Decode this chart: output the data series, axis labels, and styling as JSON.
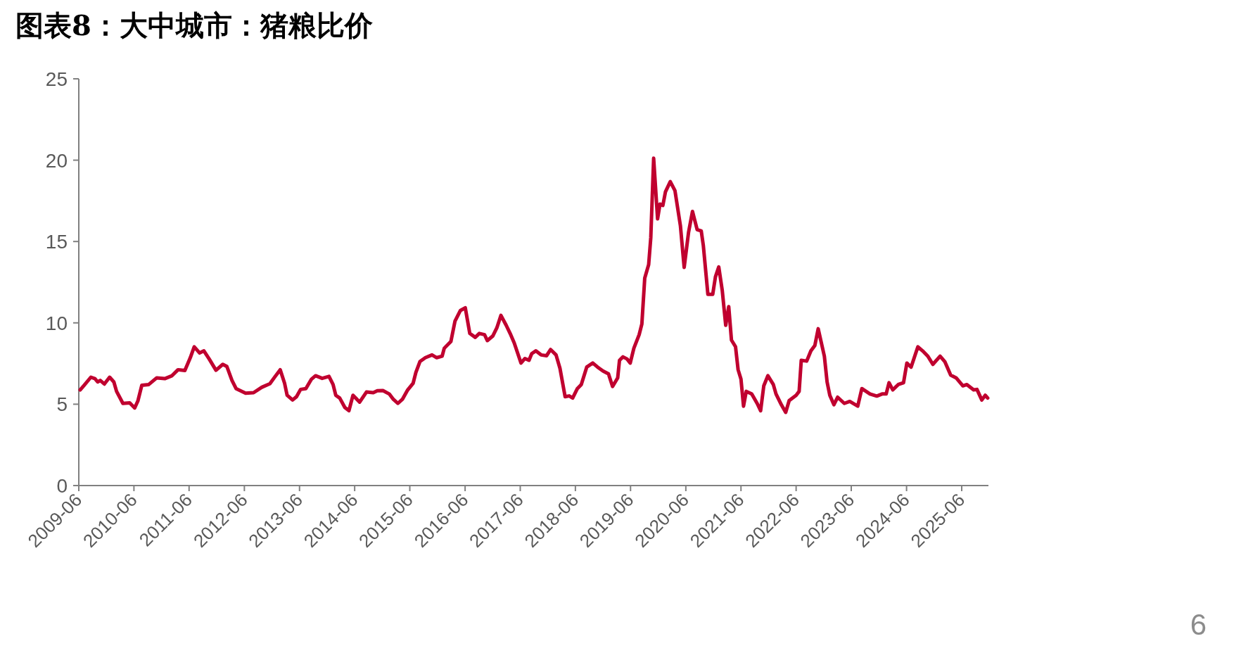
{
  "chart_data": {
    "type": "line",
    "title": "图表8：大中城市：猪粮比价",
    "annotations": [
      "6"
    ],
    "x": [
      "2009-06-10",
      "2009-07-06",
      "2009-08-20",
      "2009-09-16",
      "2009-10-04",
      "2009-10-21",
      "2009-11-17",
      "2009-12-22",
      "2010-01-19",
      "2010-02-06",
      "2010-03-20",
      "2010-05-04",
      "2010-06-06",
      "2010-06-27",
      "2010-07-23",
      "2010-09-07",
      "2010-10-30",
      "2010-12-22",
      "2011-02-06",
      "2011-03-20",
      "2011-05-04",
      "2011-06-09",
      "2011-07-05",
      "2011-08-10",
      "2011-09-07",
      "2011-10-12",
      "2011-11-26",
      "2012-01-10",
      "2012-02-06",
      "2012-03-11",
      "2012-04-07",
      "2012-06-09",
      "2012-08-01",
      "2012-09-24",
      "2012-11-17",
      "2012-12-22",
      "2013-01-24",
      "2013-02-22",
      "2013-03-11",
      "2013-04-16",
      "2013-05-12",
      "2013-06-08",
      "2013-07-13",
      "2013-08-19",
      "2013-09-15",
      "2013-10-29",
      "2013-12-13",
      "2014-01-09",
      "2014-01-27",
      "2014-02-22",
      "2014-03-28",
      "2014-04-24",
      "2014-05-21",
      "2014-07-04",
      "2014-08-18",
      "2014-10-02",
      "2014-10-29",
      "2014-12-05",
      "2015-01-16",
      "2015-02-12",
      "2015-03-14",
      "2015-04-13",
      "2015-05-18",
      "2015-06-23",
      "2015-07-11",
      "2015-08-07",
      "2015-09-12",
      "2015-10-26",
      "2015-11-26",
      "2016-01-01",
      "2016-01-15",
      "2016-02-28",
      "2016-03-26",
      "2016-05-01",
      "2016-06-02",
      "2016-07-02",
      "2016-08-07",
      "2016-09-03",
      "2016-10-08",
      "2016-10-26",
      "2016-12-01",
      "2016-12-28",
      "2017-01-24",
      "2017-02-28",
      "2017-03-26",
      "2017-04-22",
      "2017-06-06",
      "2017-07-02",
      "2017-07-29",
      "2017-08-16",
      "2017-09-12",
      "2017-10-17",
      "2017-11-22",
      "2017-12-19",
      "2018-01-24",
      "2018-02-19",
      "2018-03-25",
      "2018-04-21",
      "2018-05-14",
      "2018-06-14",
      "2018-07-10",
      "2018-08-15",
      "2018-09-24",
      "2018-10-26",
      "2018-12-01",
      "2019-01-06",
      "2019-02-02",
      "2019-03-08",
      "2019-03-20",
      "2019-04-12",
      "2019-05-09",
      "2019-05-30",
      "2019-06-23",
      "2019-07-28",
      "2019-08-15",
      "2019-09-03",
      "2019-09-29",
      "2019-10-13",
      "2019-11-01",
      "2019-11-27",
      "2019-12-13",
      "2020-01-01",
      "2020-01-18",
      "2020-02-19",
      "2020-03-21",
      "2020-04-26",
      "2020-05-21",
      "2020-06-19",
      "2020-07-15",
      "2020-08-15",
      "2020-09-11",
      "2020-09-25",
      "2020-10-25",
      "2020-11-26",
      "2020-12-14",
      "2021-01-05",
      "2021-01-28",
      "2021-02-20",
      "2021-03-12",
      "2021-03-30",
      "2021-04-26",
      "2021-05-13",
      "2021-06-01",
      "2021-06-18",
      "2021-07-06",
      "2021-08-11",
      "2021-09-16",
      "2021-10-09",
      "2021-10-30",
      "2021-11-26",
      "2022-01-01",
      "2022-01-19",
      "2022-02-23",
      "2022-03-24",
      "2022-04-16",
      "2022-06-01",
      "2022-06-21",
      "2022-07-05",
      "2022-08-10",
      "2022-09-07",
      "2022-10-03",
      "2022-10-25",
      "2022-12-05",
      "2022-12-23",
      "2023-01-10",
      "2023-02-06",
      "2023-03-03",
      "2023-04-16",
      "2023-05-22",
      "2023-07-14",
      "2023-08-10",
      "2023-10-03",
      "2023-11-17",
      "2023-12-22",
      "2024-01-18",
      "2024-02-06",
      "2024-03-02",
      "2024-04-07",
      "2024-05-12",
      "2024-06-03",
      "2024-07-01",
      "2024-08-15",
      "2024-09-15",
      "2024-10-20",
      "2024-11-22",
      "2025-01-09",
      "2025-02-09",
      "2025-03-20",
      "2025-04-25",
      "2025-06-09",
      "2025-07-05",
      "2025-08-19",
      "2025-09-10",
      "2025-10-12",
      "2025-11-04",
      "2025-11-20"
    ],
    "series": [
      {
        "color": "#c0002f",
        "values": [
          5.88,
          6.16,
          6.66,
          6.57,
          6.37,
          6.46,
          6.24,
          6.66,
          6.37,
          5.79,
          5.05,
          5.08,
          4.77,
          5.2,
          6.16,
          6.21,
          6.62,
          6.57,
          6.74,
          7.12,
          7.07,
          7.86,
          8.53,
          8.15,
          8.28,
          7.78,
          7.09,
          7.45,
          7.32,
          6.46,
          5.96,
          5.68,
          5.71,
          6.04,
          6.26,
          6.71,
          7.12,
          6.29,
          5.55,
          5.26,
          5.46,
          5.91,
          5.96,
          6.54,
          6.75,
          6.59,
          6.71,
          6.21,
          5.55,
          5.38,
          4.8,
          4.6,
          5.55,
          5.13,
          5.75,
          5.71,
          5.83,
          5.84,
          5.63,
          5.3,
          5.05,
          5.3,
          5.88,
          6.29,
          6.95,
          7.62,
          7.86,
          8.03,
          7.86,
          7.95,
          8.44,
          8.86,
          10.1,
          10.76,
          10.93,
          9.35,
          9.11,
          9.35,
          9.27,
          8.91,
          9.19,
          9.69,
          10.46,
          9.85,
          9.35,
          8.77,
          7.53,
          7.81,
          7.7,
          8.11,
          8.28,
          8.03,
          7.98,
          8.36,
          8.03,
          7.2,
          5.46,
          5.51,
          5.38,
          5.96,
          6.21,
          7.28,
          7.53,
          7.28,
          7.04,
          6.87,
          6.09,
          6.62,
          7.7,
          7.91,
          7.78,
          7.53,
          8.44,
          9.27,
          9.93,
          12.75,
          13.58,
          15.23,
          20.12,
          16.39,
          17.3,
          17.22,
          18.05,
          18.68,
          18.13,
          15.98,
          13.41,
          15.56,
          16.85,
          15.73,
          15.65,
          14.74,
          11.75,
          11.75,
          12.83,
          13.44,
          12.0,
          9.85,
          11.0,
          8.94,
          8.53,
          7.12,
          6.54,
          4.88,
          5.79,
          5.63,
          5.05,
          4.6,
          6.13,
          6.75,
          6.21,
          5.63,
          4.97,
          4.5,
          5.22,
          5.55,
          5.79,
          7.7,
          7.65,
          8.28,
          8.61,
          9.64,
          7.95,
          6.37,
          5.55,
          4.97,
          5.43,
          5.05,
          5.17,
          4.88,
          5.96,
          5.63,
          5.5,
          5.63,
          5.63,
          6.32,
          5.88,
          6.21,
          6.32,
          7.53,
          7.28,
          8.53,
          8.28,
          7.95,
          7.45,
          7.95,
          7.62,
          6.79,
          6.62,
          6.13,
          6.21,
          5.88,
          5.91,
          5.26,
          5.55,
          5.38
        ]
      }
    ],
    "xlim": [
      "2009-06",
      "2025-11-25"
    ],
    "xticks": [
      "2009-06",
      "2010-06",
      "2011-06",
      "2012-06",
      "2013-06",
      "2014-06",
      "2015-06",
      "2016-06",
      "2017-06",
      "2018-06",
      "2019-06",
      "2020-06",
      "2021-06",
      "2022-06",
      "2023-06",
      "2024-06",
      "2025-06"
    ],
    "ylim": [
      0,
      25
    ],
    "yticks": [
      0,
      5,
      10,
      15,
      20,
      25
    ]
  }
}
